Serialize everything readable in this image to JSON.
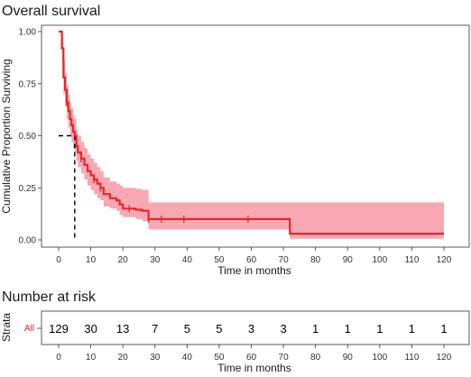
{
  "chart_data": [
    {
      "type": "line",
      "title": "Overall survival",
      "xlabel": "Time in months",
      "ylabel": "Cumulative Proportion Surviving",
      "xlim": [
        0,
        120
      ],
      "ylim": [
        0,
        1
      ],
      "xticks": [
        "0",
        "10",
        "20",
        "30",
        "40",
        "50",
        "60",
        "70",
        "80",
        "90",
        "100",
        "110",
        "120"
      ],
      "yticks": [
        "0.00",
        "0.25",
        "0.50",
        "0.75",
        "1.00"
      ],
      "grid": false,
      "legend": "none",
      "colors": {
        "curve": "#e8262c",
        "band": "#f7a8b2",
        "median": "#000000"
      },
      "median_survival": {
        "x": 5,
        "y": 0.5
      },
      "series": [
        {
          "values": [
            [
              0,
              1.0
            ],
            [
              1,
              0.92
            ],
            [
              1.5,
              0.78
            ],
            [
              2,
              0.72
            ],
            [
              2.5,
              0.66
            ],
            [
              3,
              0.62
            ],
            [
              3.5,
              0.58
            ],
            [
              4,
              0.55
            ],
            [
              4.5,
              0.52
            ],
            [
              5,
              0.5
            ],
            [
              5.5,
              0.45
            ],
            [
              6,
              0.42
            ],
            [
              7,
              0.39
            ],
            [
              8,
              0.36
            ],
            [
              9,
              0.33
            ],
            [
              10,
              0.31
            ],
            [
              11,
              0.29
            ],
            [
              12,
              0.27
            ],
            [
              13,
              0.25
            ],
            [
              14,
              0.22
            ],
            [
              16,
              0.2
            ],
            [
              18,
              0.19
            ],
            [
              19,
              0.17
            ],
            [
              20,
              0.15
            ],
            [
              24,
              0.145
            ],
            [
              26,
              0.14
            ],
            [
              28,
              0.1
            ],
            [
              71,
              0.1
            ],
            [
              72,
              0.03
            ],
            [
              120,
              0.03
            ]
          ],
          "ci_upper": [
            [
              0,
              1.0
            ],
            [
              1,
              0.97
            ],
            [
              1.5,
              0.86
            ],
            [
              2,
              0.8
            ],
            [
              2.5,
              0.74
            ],
            [
              3,
              0.7
            ],
            [
              3.5,
              0.66
            ],
            [
              4,
              0.63
            ],
            [
              4.5,
              0.6
            ],
            [
              5,
              0.58
            ],
            [
              5.5,
              0.53
            ],
            [
              6,
              0.5
            ],
            [
              7,
              0.47
            ],
            [
              8,
              0.44
            ],
            [
              9,
              0.41
            ],
            [
              10,
              0.39
            ],
            [
              11,
              0.37
            ],
            [
              12,
              0.35
            ],
            [
              13,
              0.33
            ],
            [
              14,
              0.3
            ],
            [
              16,
              0.28
            ],
            [
              18,
              0.27
            ],
            [
              19,
              0.26
            ],
            [
              20,
              0.25
            ],
            [
              24,
              0.245
            ],
            [
              26,
              0.24
            ],
            [
              28,
              0.18
            ],
            [
              71,
              0.18
            ],
            [
              72,
              0.18
            ],
            [
              120,
              0.18
            ]
          ],
          "ci_lower": [
            [
              0,
              1.0
            ],
            [
              1,
              0.86
            ],
            [
              1.5,
              0.7
            ],
            [
              2,
              0.64
            ],
            [
              2.5,
              0.58
            ],
            [
              3,
              0.54
            ],
            [
              3.5,
              0.5
            ],
            [
              4,
              0.47
            ],
            [
              4.5,
              0.44
            ],
            [
              5,
              0.42
            ],
            [
              5.5,
              0.38
            ],
            [
              6,
              0.35
            ],
            [
              7,
              0.32
            ],
            [
              8,
              0.29
            ],
            [
              9,
              0.26
            ],
            [
              10,
              0.24
            ],
            [
              11,
              0.22
            ],
            [
              12,
              0.2
            ],
            [
              13,
              0.19
            ],
            [
              14,
              0.16
            ],
            [
              16,
              0.15
            ],
            [
              18,
              0.14
            ],
            [
              19,
              0.12
            ],
            [
              20,
              0.11
            ],
            [
              24,
              0.1
            ],
            [
              26,
              0.09
            ],
            [
              28,
              0.05
            ],
            [
              71,
              0.05
            ],
            [
              72,
              0.005
            ],
            [
              120,
              0.005
            ]
          ],
          "censor_marks": [
            [
              2.5,
              0.66
            ],
            [
              7,
              0.39
            ],
            [
              11,
              0.29
            ],
            [
              13,
              0.25
            ],
            [
              22,
              0.15
            ],
            [
              28,
              0.1
            ],
            [
              32,
              0.1
            ],
            [
              39,
              0.1
            ],
            [
              59,
              0.1
            ]
          ]
        }
      ]
    },
    {
      "type": "table",
      "title": "Number at risk",
      "xlabel": "Time in months",
      "ylabel": "Strata",
      "strata_label": "All",
      "xlim": [
        0,
        120
      ],
      "xticks": [
        "0",
        "10",
        "20",
        "30",
        "40",
        "50",
        "60",
        "70",
        "80",
        "90",
        "100",
        "110",
        "120"
      ],
      "times": [
        0,
        10,
        20,
        30,
        40,
        50,
        60,
        70,
        80,
        90,
        100,
        110,
        120
      ],
      "values": [
        "129",
        "30",
        "13",
        "7",
        "5",
        "5",
        "3",
        "3",
        "1",
        "1",
        "1",
        "1",
        "1"
      ]
    }
  ]
}
